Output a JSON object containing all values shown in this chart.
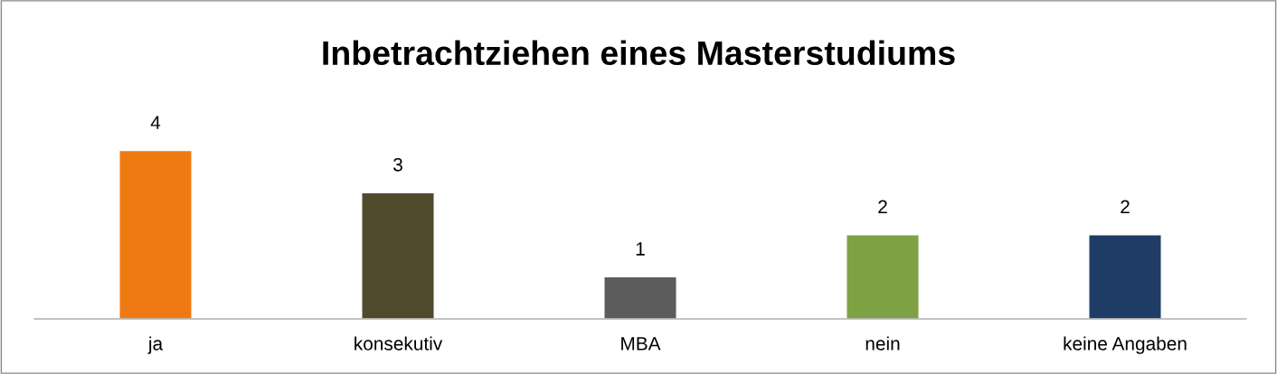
{
  "chart_data": {
    "type": "bar",
    "title": "Inbetrachtziehen eines Masterstudiums",
    "categories": [
      "ja",
      "konsekutiv",
      "MBA",
      "nein",
      "keine Angaben"
    ],
    "values": [
      4,
      3,
      1,
      2,
      2
    ],
    "colors": [
      "#f07a12",
      "#4f4a2c",
      "#5c5c5c",
      "#7ea143",
      "#1f3c66"
    ],
    "data_labels": true,
    "grid": false,
    "legend": false
  }
}
